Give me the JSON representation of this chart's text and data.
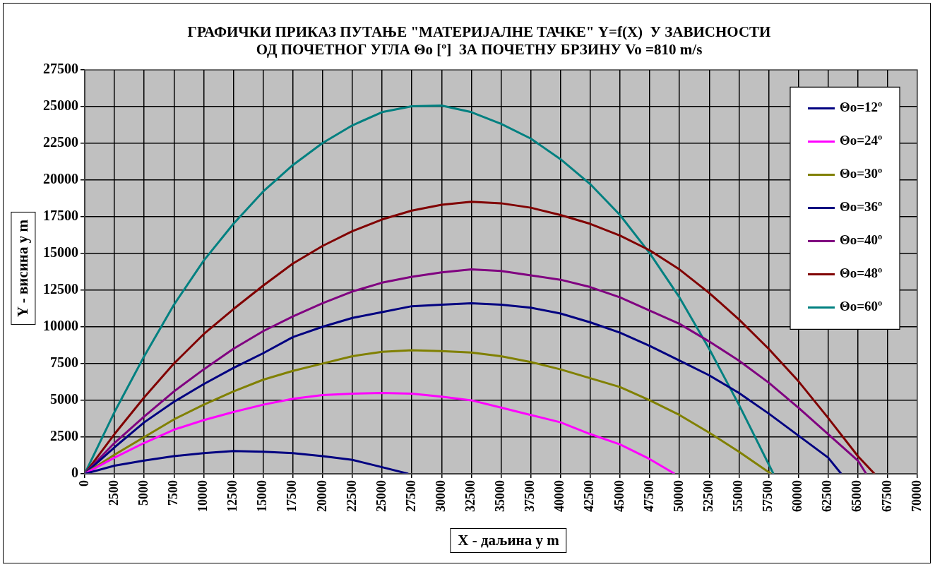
{
  "chart_data": {
    "type": "line",
    "title": "ГРАФИЧКИ ПРИКАЗ ПУТАЊЕ \"МАТЕРИЈАЛНЕ ТАЧКЕ\" Y=f(X)  У ЗАВИСНОСТИ\nОД ПОЧЕТНОГ УГЛА Θo [º]  ЗА ПОЧЕТНУ БРЗИНУ Vo =810 m/s",
    "xlabel": "X - даљина у m",
    "ylabel": "Y - висина у m",
    "xlim": [
      0,
      70000
    ],
    "ylim": [
      0,
      27500
    ],
    "xticks": [
      0,
      2500,
      5000,
      7500,
      10000,
      12500,
      15000,
      17500,
      20000,
      22500,
      25000,
      27500,
      30000,
      32500,
      35000,
      37500,
      40000,
      42500,
      45000,
      47500,
      50000,
      52500,
      55000,
      57500,
      60000,
      62500,
      65000,
      67500,
      70000
    ],
    "yticks": [
      0,
      2500,
      5000,
      7500,
      10000,
      12500,
      15000,
      17500,
      20000,
      22500,
      25000,
      27500
    ],
    "grid": true,
    "legend": "top right",
    "marker": "none",
    "line_style": "solid",
    "series": [
      {
        "name": "Θo=12º",
        "color": "#000080",
        "x": [
          0,
          2500,
          5000,
          7500,
          10000,
          12500,
          15000,
          17500,
          20000,
          22500,
          25000,
          27200
        ],
        "values": [
          0,
          550,
          900,
          1200,
          1400,
          1550,
          1500,
          1400,
          1200,
          950,
          450,
          0
        ]
      },
      {
        "name": "Θo=24º",
        "color": "#ff00ff",
        "x": [
          0,
          2500,
          5000,
          7500,
          10000,
          12500,
          15000,
          17500,
          20000,
          22500,
          25000,
          27500,
          30000,
          32500,
          35000,
          37500,
          40000,
          42500,
          45000,
          47500,
          49600
        ],
        "values": [
          0,
          1100,
          2100,
          3000,
          3650,
          4200,
          4700,
          5100,
          5350,
          5450,
          5500,
          5450,
          5250,
          5000,
          4500,
          4000,
          3500,
          2700,
          2000,
          1000,
          0
        ]
      },
      {
        "name": "Θo=30º",
        "color": "#808000",
        "x": [
          0,
          2500,
          5000,
          7500,
          10000,
          12500,
          15000,
          17500,
          20000,
          22500,
          25000,
          27500,
          30000,
          32500,
          35000,
          37500,
          40000,
          42500,
          45000,
          47500,
          50000,
          52500,
          55000,
          57700
        ],
        "values": [
          0,
          1300,
          2500,
          3700,
          4700,
          5600,
          6400,
          7000,
          7500,
          8000,
          8300,
          8400,
          8350,
          8250,
          8000,
          7600,
          7100,
          6500,
          5900,
          5000,
          4000,
          2800,
          1500,
          0
        ]
      },
      {
        "name": "Θo=36º",
        "color": "#000080",
        "x": [
          0,
          2500,
          5000,
          7500,
          10000,
          12500,
          15000,
          17500,
          20000,
          22500,
          25000,
          27500,
          30000,
          32500,
          35000,
          37500,
          40000,
          42500,
          45000,
          47500,
          50000,
          52500,
          55000,
          57500,
          60000,
          62500,
          63600
        ],
        "values": [
          0,
          1800,
          3500,
          4900,
          6100,
          7200,
          8200,
          9300,
          10000,
          10600,
          11000,
          11400,
          11500,
          11600,
          11500,
          11300,
          10900,
          10300,
          9600,
          8700,
          7700,
          6700,
          5500,
          4100,
          2600,
          1100,
          0
        ]
      },
      {
        "name": "Θo=40º",
        "color": "#800080",
        "x": [
          0,
          2500,
          5000,
          7500,
          10000,
          12500,
          15000,
          17500,
          20000,
          22500,
          25000,
          27500,
          30000,
          32500,
          35000,
          37500,
          40000,
          42500,
          45000,
          47500,
          50000,
          52500,
          55000,
          57500,
          60000,
          62500,
          65000,
          65700
        ],
        "values": [
          0,
          2100,
          3900,
          5600,
          7100,
          8500,
          9700,
          10700,
          11600,
          12400,
          13000,
          13400,
          13700,
          13900,
          13800,
          13500,
          13200,
          12700,
          12000,
          11100,
          10200,
          9000,
          7700,
          6200,
          4500,
          2700,
          900,
          0
        ]
      },
      {
        "name": "Θo=48º",
        "color": "#800000",
        "x": [
          0,
          2500,
          5000,
          7500,
          10000,
          12500,
          15000,
          17500,
          20000,
          22500,
          25000,
          27500,
          30000,
          32500,
          35000,
          37500,
          40000,
          42500,
          45000,
          47500,
          50000,
          52500,
          55000,
          57500,
          60000,
          62500,
          65000,
          66400
        ],
        "values": [
          0,
          2700,
          5200,
          7500,
          9500,
          11200,
          12800,
          14300,
          15500,
          16500,
          17300,
          17900,
          18300,
          18500,
          18400,
          18100,
          17600,
          17000,
          16200,
          15200,
          13900,
          12300,
          10500,
          8500,
          6300,
          3800,
          1200,
          0
        ]
      },
      {
        "name": "Θo=60º",
        "color": "#008080",
        "x": [
          0,
          2500,
          5000,
          7500,
          10000,
          12500,
          15000,
          17500,
          20000,
          22500,
          25000,
          27500,
          30000,
          32500,
          35000,
          37500,
          40000,
          42500,
          45000,
          47500,
          50000,
          52500,
          55000,
          57900
        ],
        "values": [
          0,
          4200,
          8000,
          11500,
          14500,
          17000,
          19200,
          21000,
          22500,
          23700,
          24600,
          25000,
          25050,
          24600,
          23800,
          22800,
          21400,
          19700,
          17600,
          15000,
          12000,
          8500,
          4700,
          0
        ]
      }
    ]
  }
}
